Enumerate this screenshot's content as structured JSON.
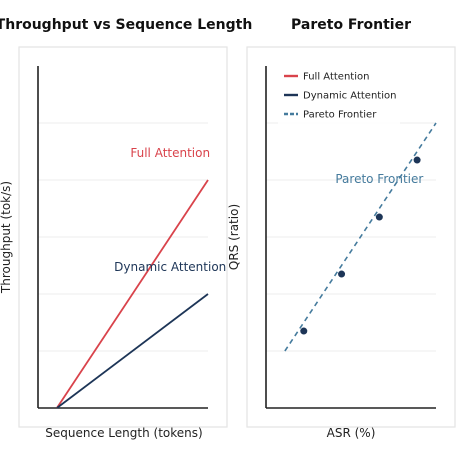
{
  "chart_data": [
    {
      "type": "line",
      "title": "Throughput vs Sequence Length",
      "xlabel": "Sequence Length (tokens)",
      "ylabel": "Throughput (tok/s)",
      "xlim": [
        0,
        9
      ],
      "ylim": [
        0,
        6
      ],
      "grid": "horizontal",
      "legend": "none",
      "series": [
        {
          "name": "Full Attention",
          "color": "#d9434b",
          "x": [
            1,
            9
          ],
          "y": [
            0,
            4
          ]
        },
        {
          "name": "Dynamic Attention",
          "color": "#1d3557",
          "x": [
            1,
            9
          ],
          "y": [
            0,
            2
          ]
        }
      ],
      "annotations": [
        {
          "text": "Full Attention",
          "x": 7,
          "y": 4.4,
          "color": "#d9434b"
        },
        {
          "text": "Dynamic Attention",
          "x": 7,
          "y": 2.4,
          "color": "#1d3557"
        }
      ]
    },
    {
      "type": "scatter",
      "title": "Pareto Frontier",
      "xlabel": "ASR (%)",
      "ylabel": "QRS (ratio)",
      "xlim": [
        0,
        9
      ],
      "ylim": [
        0,
        6
      ],
      "grid": "horizontal",
      "legend": "top-left",
      "legend_items": [
        {
          "name": "Full Attention",
          "color": "#d9434b",
          "style": "solid"
        },
        {
          "name": "Dynamic Attention",
          "color": "#1d3557",
          "style": "solid"
        },
        {
          "name": "Pareto Frontier",
          "color": "#457b9d",
          "style": "dashed"
        }
      ],
      "points": {
        "color": "#1d3557",
        "x": [
          2,
          4,
          6,
          8
        ],
        "y": [
          1.35,
          2.35,
          3.35,
          4.35
        ]
      },
      "frontier": {
        "name": "Pareto Frontier",
        "color": "#457b9d",
        "x": [
          1,
          9
        ],
        "y": [
          1,
          5
        ]
      },
      "annotations": [
        {
          "text": "Pareto Frontier",
          "x": 6,
          "y": 3.95,
          "color": "#457b9d"
        }
      ]
    }
  ]
}
